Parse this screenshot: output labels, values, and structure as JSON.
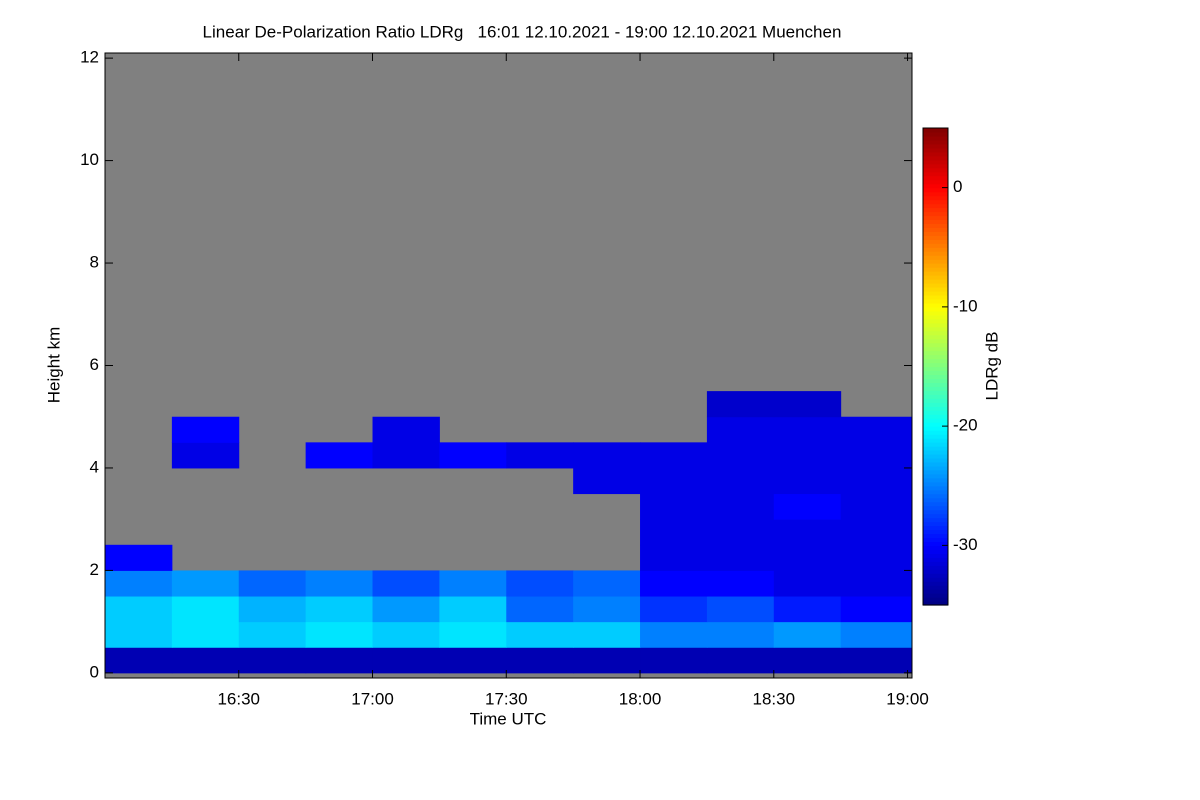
{
  "chart_data": {
    "type": "heatmap",
    "title": "Linear De-Polarization Ratio LDRg   16:01 12.10.2021 - 19:00 12.10.2021 Muenchen",
    "xlabel": "Time UTC",
    "ylabel": "Height km",
    "colorbar_label": "LDRg dB",
    "colormap": "jet",
    "background": "#808080",
    "xlim": [
      960,
      1141
    ],
    "xticks": [
      {
        "value": 990,
        "label": "16:30"
      },
      {
        "value": 1020,
        "label": "17:00"
      },
      {
        "value": 1050,
        "label": "17:30"
      },
      {
        "value": 1080,
        "label": "18:00"
      },
      {
        "value": 1110,
        "label": "18:30"
      },
      {
        "value": 1140,
        "label": "19:00"
      }
    ],
    "ylim": [
      -0.1,
      12.1
    ],
    "yticks": [
      0,
      2,
      4,
      6,
      8,
      10,
      12
    ],
    "clim": [
      -35,
      5
    ],
    "cticks": [
      0,
      -10,
      -20,
      -30
    ],
    "x_bins": [
      960,
      975,
      990,
      1005,
      1020,
      1035,
      1050,
      1065,
      1080,
      1095,
      1110,
      1125,
      1141
    ],
    "y_bins": [
      0,
      0.5,
      1,
      1.5,
      2,
      2.5,
      3,
      3.5,
      4,
      4.5,
      5,
      5.5
    ],
    "z": [
      [
        -33,
        -33,
        -33,
        -33,
        -33,
        -33,
        -33,
        -33,
        -33,
        -33,
        -33,
        -33
      ],
      [
        -22,
        -21,
        -22,
        -21,
        -22,
        -21,
        -22,
        -22,
        -25,
        -25,
        -24,
        -25
      ],
      [
        -22,
        -21,
        -23,
        -22,
        -24,
        -22,
        -26,
        -25,
        -28,
        -27,
        -29,
        -30
      ],
      [
        -25,
        -24,
        -26,
        -25,
        -27,
        -25,
        -27,
        -26,
        -30,
        -30,
        -31,
        -31
      ],
      [
        -30,
        null,
        null,
        null,
        null,
        null,
        null,
        null,
        -31,
        -31,
        -31,
        -31
      ],
      [
        null,
        null,
        null,
        null,
        null,
        null,
        null,
        null,
        -31,
        -31,
        -31,
        -31
      ],
      [
        null,
        null,
        null,
        null,
        null,
        null,
        null,
        null,
        -31,
        -31,
        -30,
        -31
      ],
      [
        null,
        null,
        null,
        null,
        null,
        null,
        null,
        -31,
        -31,
        -31,
        -31,
        -31
      ],
      [
        null,
        -31,
        null,
        -30,
        -31,
        -30,
        -31,
        -31,
        -31,
        -31,
        -31,
        -31
      ],
      [
        null,
        -30,
        null,
        null,
        -31,
        null,
        null,
        null,
        null,
        -31,
        -31,
        -31
      ],
      [
        null,
        null,
        null,
        null,
        null,
        null,
        null,
        null,
        null,
        -32,
        -32,
        null
      ]
    ]
  }
}
